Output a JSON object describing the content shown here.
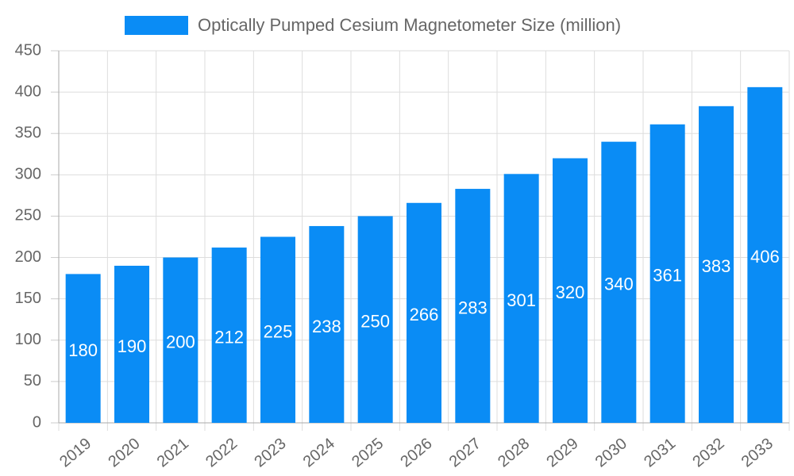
{
  "chart_data": {
    "type": "bar",
    "categories": [
      "2019",
      "2020",
      "2021",
      "2022",
      "2023",
      "2024",
      "2025",
      "2026",
      "2027",
      "2028",
      "2029",
      "2030",
      "2031",
      "2032",
      "2033"
    ],
    "series": [
      {
        "name": "Optically Pumped Cesium Magnetometer Size (million)",
        "color": "#0a8cf5",
        "values": [
          180,
          190,
          200,
          212,
          225,
          238,
          250,
          266,
          283,
          301,
          320,
          340,
          361,
          383,
          406
        ]
      }
    ],
    "ylim": [
      0,
      450
    ],
    "yticks": [
      0,
      50,
      100,
      150,
      200,
      250,
      300,
      350,
      400,
      450
    ],
    "grid": true,
    "legend": "top"
  }
}
